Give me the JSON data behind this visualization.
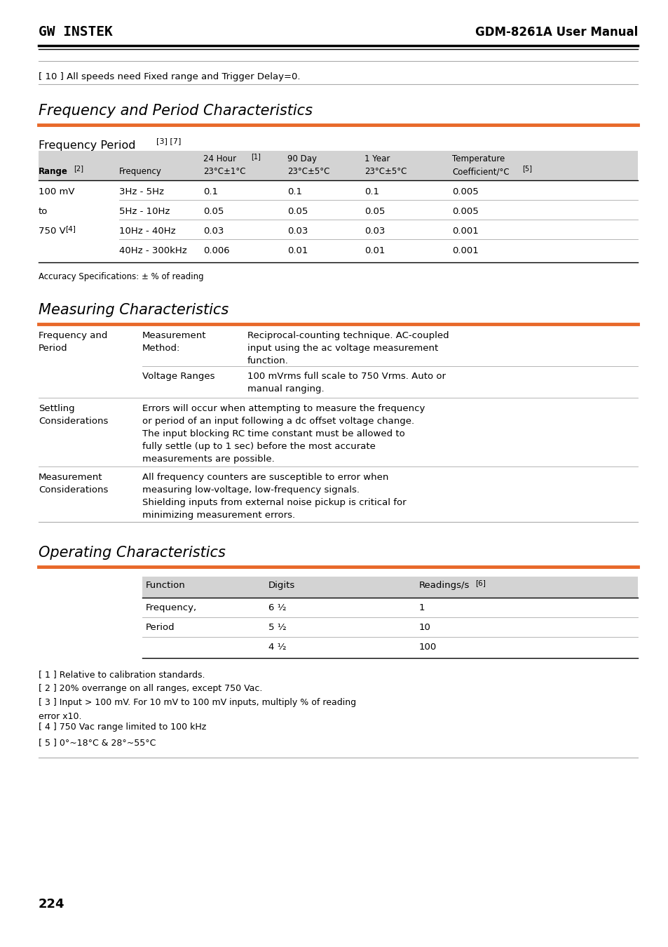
{
  "page_width": 9.54,
  "page_height": 13.5,
  "bg_color": "#ffffff",
  "text_color": "#000000",
  "orange_color": "#e8692a",
  "gray_header_color": "#d3d3d3",
  "logo_text": "GW INSTEK",
  "header_right": "GDM-8261A User Manual",
  "note_line": "[ 10 ] All speeds need Fixed range and Trigger Delay=0.",
  "section1_title": "Frequency and Period Characteristics",
  "subsection1_title": "Frequency Period",
  "subsection1_superscript": "[3] [7]",
  "freq_table_note": "Accuracy Specifications: ± % of reading",
  "section2_title": "Measuring Characteristics",
  "section3_title": "Operating Characteristics",
  "op_table_headers": [
    "Function",
    "Digits",
    "Readings/s [6]"
  ],
  "op_table_rows": [
    [
      "Frequency,",
      "6 ½",
      "1"
    ],
    [
      "Period",
      "5 ½",
      "10"
    ],
    [
      "",
      "4 ½",
      "100"
    ]
  ],
  "footnotes": [
    "[ 1 ] Relative to calibration standards.",
    "[ 2 ] 20% overrange on all ranges, except 750 Vac.",
    "[ 3 ] Input > 100 mV. For 10 mV to 100 mV inputs, multiply % of reading\nerror x10.",
    "[ 4 ] 750 Vac range limited to 100 kHz",
    "[ 5 ] 0°~18°C & 28°~55°C"
  ],
  "page_number": "224"
}
